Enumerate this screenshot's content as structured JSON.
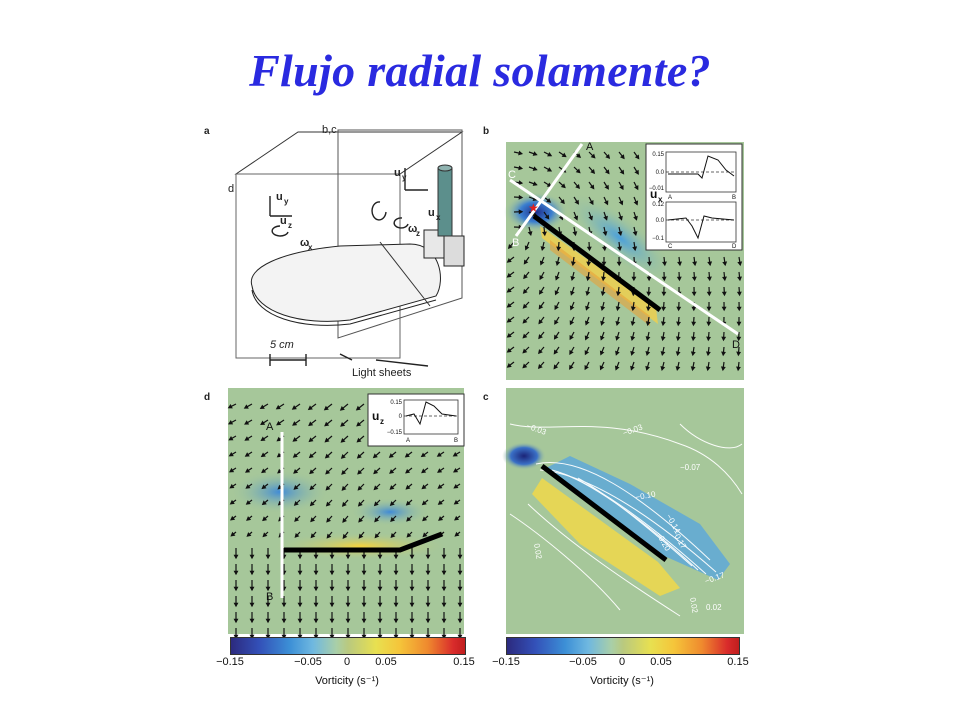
{
  "title": "Flujo radial solamente?",
  "panel_a": {
    "label": "a",
    "plane_bc": "b,c",
    "plane_d": "d",
    "uy": "u",
    "uy_sub": "y",
    "uz": "u",
    "uz_sub": "z",
    "wx": "ω",
    "wx_sub": "x",
    "ux_right": "u",
    "ux_right_sub": "x",
    "uy_right": "u",
    "uy_right_sub": "y",
    "wz": "ω",
    "wz_sub": "z",
    "scale": "5 cm",
    "light_sheets": "Light sheets"
  },
  "panel_b": {
    "label": "b",
    "points": [
      "A",
      "B",
      "C",
      "D"
    ],
    "inset_ylabel": "u",
    "inset_ylabel_sub": "x",
    "inset_top_ticks": [
      "0.15",
      "0.0",
      "−0.01"
    ],
    "inset_top_x": [
      "A",
      "B"
    ],
    "inset_bottom_ticks": [
      "0.12",
      "0.0",
      "−0.1"
    ],
    "inset_bottom_x": [
      "C",
      "D"
    ]
  },
  "panel_d": {
    "label": "d",
    "points": [
      "A",
      "B"
    ],
    "inset_ylabel": "u",
    "inset_ylabel_sub": "z",
    "inset_ticks": [
      "0.15",
      "0",
      "−0.15"
    ],
    "inset_x": [
      "A",
      "B"
    ]
  },
  "panel_c": {
    "label": "c",
    "contours": [
      "−0.03",
      "−0.03",
      "−0.07",
      "−0.10",
      "−0.14",
      "−0.17",
      "−0.20",
      "−0.17",
      "0.02",
      "0.02",
      "0.02"
    ]
  },
  "colorbars": [
    {
      "ticks": [
        "−0.15",
        "−0.05",
        "0",
        "0.05",
        "0.15"
      ],
      "label": "Vorticity (s⁻¹)"
    },
    {
      "ticks": [
        "−0.15",
        "−0.05",
        "0",
        "0.05",
        "0.15"
      ],
      "label": "Vorticity (s⁻¹)"
    }
  ]
}
